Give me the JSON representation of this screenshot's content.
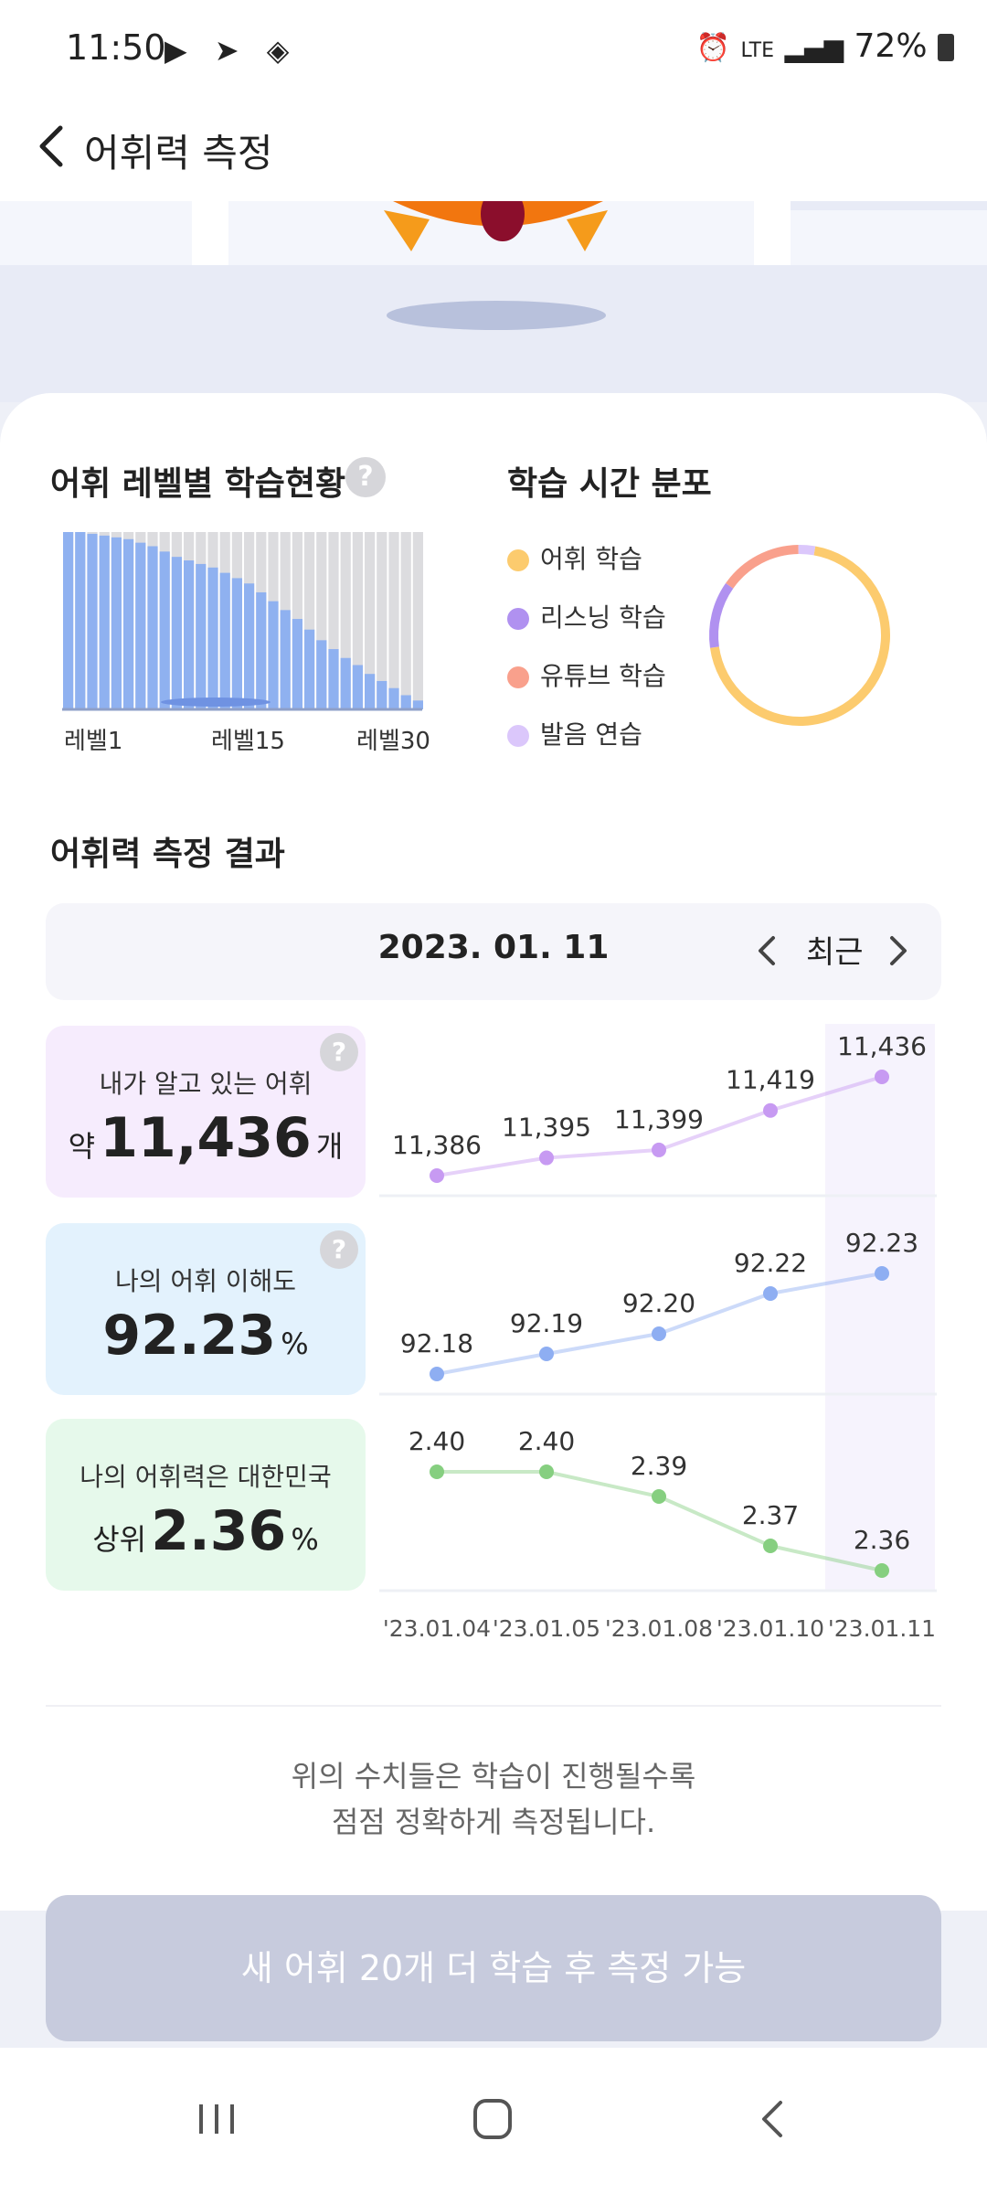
{
  "status_bar": {
    "time": "11:50",
    "battery": "72%",
    "network": "LTE",
    "icons": [
      "youtube-icon",
      "telegram-icon",
      "shield-icon",
      "alarm-icon",
      "signal-icon",
      "battery-icon"
    ]
  },
  "header": {
    "title": "어휘력 측정"
  },
  "level_section": {
    "title": "어휘 레벨별 학습현황",
    "axis_labels": [
      "레벨1",
      "레벨15",
      "레벨30"
    ]
  },
  "time_section": {
    "title": "학습 시간 분포",
    "legend": [
      {
        "label": "어휘 학습",
        "color": "#fccb6e"
      },
      {
        "label": "리스닝 학습",
        "color": "#b091f0"
      },
      {
        "label": "유튜브 학습",
        "color": "#f9a08c"
      },
      {
        "label": "발음 연습",
        "color": "#dbc7fb"
      }
    ]
  },
  "result_section": {
    "title": "어휘력 측정 결과",
    "date": "2023. 01. 11",
    "recent_label": "최근"
  },
  "metrics": [
    {
      "label": "내가 알고 있는 어휘",
      "prefix": "약",
      "value": "11,436",
      "suffix": "개",
      "bg": "#f6ecfd",
      "color": "#c79af2"
    },
    {
      "label": "나의 어휘 이해도",
      "prefix": "",
      "value": "92.23",
      "suffix": "%",
      "bg": "#e3f2fd",
      "color": "#8eaef2"
    },
    {
      "label": "나의 어휘력은 대한민국",
      "prefix": "상위",
      "value": "2.36",
      "suffix": "%",
      "bg": "#e6f9eb",
      "color": "#86cf80"
    }
  ],
  "chart_data": {
    "level_bars": {
      "type": "bar",
      "categories": [
        "레벨1",
        "레벨2",
        "레벨3",
        "레벨4",
        "레벨5",
        "레벨6",
        "레벨7",
        "레벨8",
        "레벨9",
        "레벨10",
        "레벨11",
        "레벨12",
        "레벨13",
        "레벨14",
        "레벨15",
        "레벨16",
        "레벨17",
        "레벨18",
        "레벨19",
        "레벨20",
        "레벨21",
        "레벨22",
        "레벨23",
        "레벨24",
        "레벨25",
        "레벨26",
        "레벨27",
        "레벨28",
        "레벨29",
        "레벨30"
      ],
      "values": [
        100,
        100,
        99,
        98,
        97,
        96,
        94,
        92,
        89,
        86,
        84,
        82,
        80,
        77,
        74,
        71,
        66,
        61,
        56,
        51,
        45,
        39,
        34,
        29,
        25,
        20,
        16,
        12,
        8,
        5
      ]
    },
    "time_distribution": {
      "type": "pie",
      "labels": [
        "어휘 학습",
        "리스닝 학습",
        "유튜브 학습",
        "발음 연습"
      ],
      "values": [
        70,
        12,
        15,
        3
      ]
    },
    "trends": {
      "type": "line",
      "x": [
        "'23.01.04",
        "'23.01.05",
        "'23.01.08",
        "'23.01.10",
        "'23.01.11"
      ],
      "series": [
        {
          "values": [
            11386,
            11395,
            11399,
            11419,
            11436
          ],
          "labels": [
            "11,386",
            "11,395",
            "11,399",
            "11,419",
            "11,436"
          ]
        },
        {
          "values": [
            92.18,
            92.19,
            92.2,
            92.22,
            92.23
          ],
          "labels": [
            "92.18",
            "92.19",
            "92.20",
            "92.22",
            "92.23"
          ]
        },
        {
          "values": [
            2.4,
            2.4,
            2.39,
            2.37,
            2.36
          ],
          "labels": [
            "2.40",
            "2.40",
            "2.39",
            "2.37",
            "2.36"
          ]
        }
      ]
    }
  },
  "note": {
    "line1": "위의 수치들은 학습이 진행될수록",
    "line2": "점점 정확하게 측정됩니다."
  },
  "cta": {
    "label": "새 어휘 20개 더 학습 후 측정 가능"
  }
}
